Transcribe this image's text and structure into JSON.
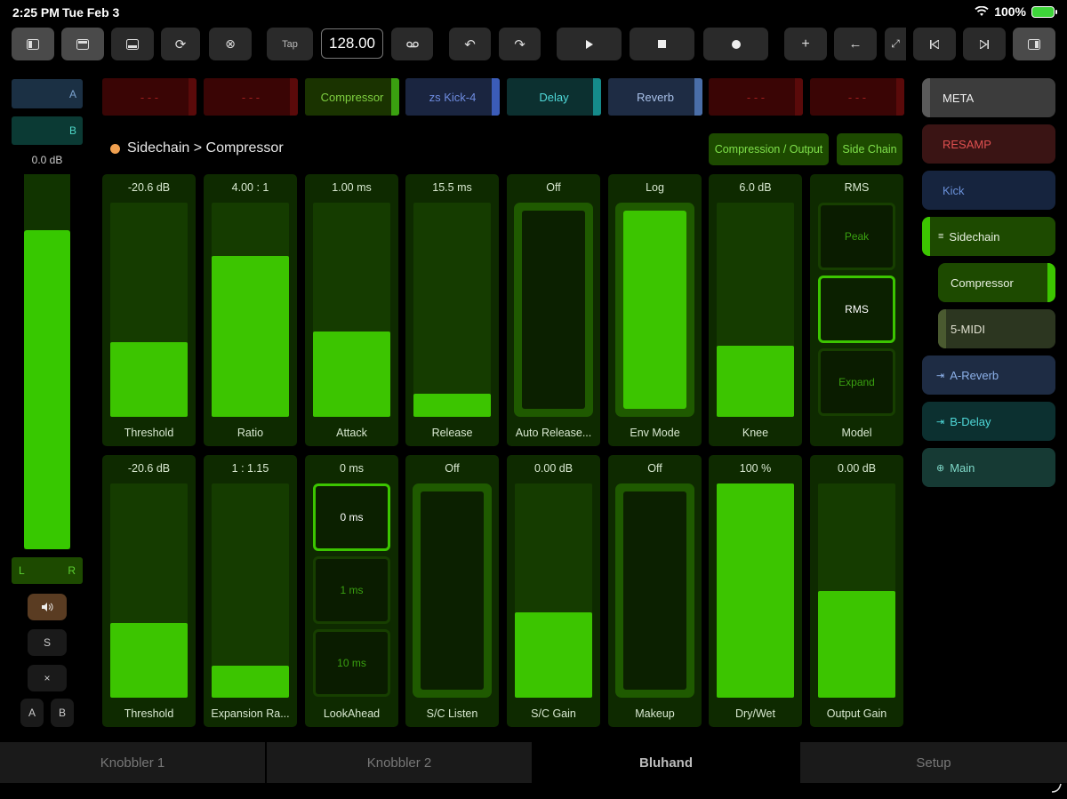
{
  "status": {
    "time": "2:25 PM",
    "date": "Tue Feb 3",
    "battery": "100%"
  },
  "toolbar": {
    "tap_label": "Tap",
    "tempo": "128.00"
  },
  "left": {
    "bus_a": "A",
    "bus_b": "B",
    "level": "0.0 dB",
    "meter_fraction": 0.85,
    "lr_left": "L",
    "lr_right": "R",
    "solo": "S",
    "close": "×",
    "ab_a": "A",
    "ab_b": "B"
  },
  "slots": [
    {
      "label": "- - -",
      "color": "#3a0505",
      "edge": "#5a0a0a",
      "text": "#a02020"
    },
    {
      "label": "- - -",
      "color": "#3a0505",
      "edge": "#5a0a0a",
      "text": "#a02020"
    },
    {
      "label": "Compressor",
      "color": "#1a3300",
      "edge": "#3aa010",
      "text": "#7fd040"
    },
    {
      "label": "zs Kick-4",
      "color": "#1a2540",
      "edge": "#3b5cb8",
      "text": "#6e8ce0"
    },
    {
      "label": "Delay",
      "color": "#0c3030",
      "edge": "#158a8a",
      "text": "#4fd8d8"
    },
    {
      "label": "Reverb",
      "color": "#1e2c44",
      "edge": "#4a6ea8",
      "text": "#a8c0e8"
    },
    {
      "label": "- - -",
      "color": "#3a0505",
      "edge": "#5a0a0a",
      "text": "#a02020"
    },
    {
      "label": "- - -",
      "color": "#3a0505",
      "edge": "#5a0a0a",
      "text": "#a02020"
    }
  ],
  "breadcrumb": "Sidechain > Compressor",
  "pages": {
    "compression_output": "Compression / Output",
    "side_chain": "Side Chain"
  },
  "row1": [
    {
      "value": "-20.6 dB",
      "label": "Threshold",
      "kind": "bar",
      "fraction": 0.35
    },
    {
      "value": "4.00 : 1",
      "label": "Ratio",
      "kind": "bar",
      "fraction": 0.75
    },
    {
      "value": "1.00 ms",
      "label": "Attack",
      "kind": "bar",
      "fraction": 0.4
    },
    {
      "value": "15.5 ms",
      "label": "Release",
      "kind": "bar",
      "fraction": 0.11
    },
    {
      "value": "Off",
      "label": "Auto Release...",
      "kind": "toggle",
      "on": false
    },
    {
      "value": "Log",
      "label": "Env Mode",
      "kind": "toggle",
      "on": true
    },
    {
      "value": "6.0 dB",
      "label": "Knee",
      "kind": "bar",
      "fraction": 0.33
    },
    {
      "value": "RMS",
      "label": "Model",
      "kind": "seg",
      "options": [
        "Peak",
        "RMS",
        "Expand"
      ],
      "selected": 1
    }
  ],
  "row2": [
    {
      "value": "-20.6 dB",
      "label": "Threshold",
      "kind": "bar",
      "fraction": 0.35
    },
    {
      "value": "1 : 1.15",
      "label": "Expansion Ra...",
      "kind": "bar",
      "fraction": 0.15
    },
    {
      "value": "0 ms",
      "label": "LookAhead",
      "kind": "seg",
      "options": [
        "0 ms",
        "1 ms",
        "10 ms"
      ],
      "selected": 0
    },
    {
      "value": "Off",
      "label": "S/C Listen",
      "kind": "toggle",
      "on": false
    },
    {
      "value": "0.00 dB",
      "label": "S/C Gain",
      "kind": "bar",
      "fraction": 0.4
    },
    {
      "value": "Off",
      "label": "Makeup",
      "kind": "toggle",
      "on": false
    },
    {
      "value": "100 %",
      "label": "Dry/Wet",
      "kind": "bar",
      "fraction": 1.0
    },
    {
      "value": "0.00 dB",
      "label": "Output Gain",
      "kind": "bar",
      "fraction": 0.5
    }
  ],
  "right": [
    {
      "label": "META",
      "bg": "#3c3c3c",
      "text": "#f0f0f0",
      "edge": "#5a5a5a",
      "icon": ""
    },
    {
      "label": "RESAMP",
      "bg": "#3a1414",
      "text": "#e05050",
      "edge": "",
      "icon": ""
    },
    {
      "label": "Kick",
      "bg": "#16243e",
      "text": "#6a90d8",
      "edge": "",
      "icon": ""
    },
    {
      "label": "Sidechain",
      "bg": "#1d4a00",
      "text": "#e8f0e0",
      "edge": "#3cc500",
      "icon": "≡"
    },
    {
      "label": "Compressor",
      "bg": "#1d4a00",
      "text": "#e8f0e0",
      "edge": "#3cc500",
      "icon": ""
    },
    {
      "label": "5-MIDI",
      "bg": "#2c3620",
      "text": "#e0e0d0",
      "edge": "#4a5a30",
      "icon": ""
    },
    {
      "label": "A-Reverb",
      "bg": "#1e2c44",
      "text": "#8cb0e8",
      "edge": "",
      "icon": "⇥"
    },
    {
      "label": "B-Delay",
      "bg": "#0c3030",
      "text": "#4fd8d8",
      "edge": "",
      "icon": "⇥"
    },
    {
      "label": "Main",
      "bg": "#163a34",
      "text": "#7fd8c8",
      "edge": "",
      "icon": "⊕"
    }
  ],
  "tabs": [
    "Knobbler 1",
    "Knobbler 2",
    "Bluhand",
    "Setup"
  ],
  "active_tab": 2
}
